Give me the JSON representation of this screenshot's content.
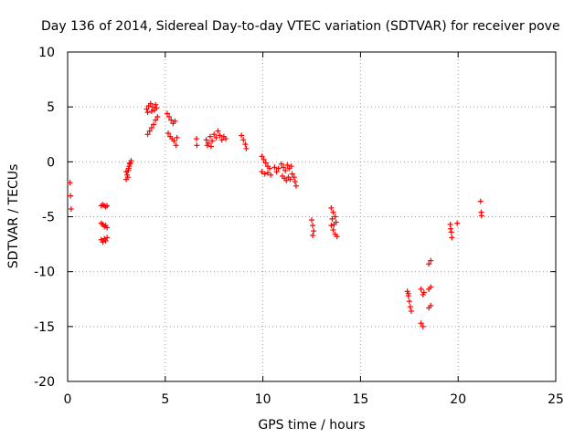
{
  "chart_data": {
    "type": "scatter",
    "title": "Day 136 of 2014, Sidereal Day-to-day VTEC variation (SDTVAR) for receiver pove",
    "xlabel": "GPS time / hours",
    "ylabel": "SDTVAR / TECUs",
    "xlim": [
      0,
      25
    ],
    "ylim": [
      -20,
      10
    ],
    "xticks": [
      0,
      5,
      10,
      15,
      20,
      25
    ],
    "yticks": [
      -20,
      -15,
      -10,
      -5,
      0,
      5,
      10
    ],
    "xtick_labels": [
      "0",
      "5",
      "10",
      "15",
      "20",
      "25"
    ],
    "ytick_labels": [
      "-20",
      "-15",
      "-10",
      "-5",
      "0",
      "5",
      "10"
    ],
    "grid": true,
    "marker": "+",
    "color": "#ff0000",
    "series": [
      {
        "name": "SDTVAR",
        "points": [
          [
            0.12,
            -1.9
          ],
          [
            0.15,
            -3.1
          ],
          [
            0.18,
            -4.3
          ],
          [
            1.72,
            -4.0
          ],
          [
            1.8,
            -3.9
          ],
          [
            1.88,
            -4.0
          ],
          [
            1.95,
            -4.1
          ],
          [
            2.02,
            -4.0
          ],
          [
            1.72,
            -5.6
          ],
          [
            1.8,
            -5.7
          ],
          [
            1.88,
            -5.9
          ],
          [
            1.95,
            -5.8
          ],
          [
            2.02,
            -6.0
          ],
          [
            1.72,
            -7.1
          ],
          [
            1.8,
            -7.3
          ],
          [
            1.88,
            -7.0
          ],
          [
            1.95,
            -7.2
          ],
          [
            2.02,
            -6.9
          ],
          [
            3.0,
            -1.6
          ],
          [
            3.05,
            -1.2
          ],
          [
            3.1,
            -0.8
          ],
          [
            3.15,
            -0.4
          ],
          [
            3.2,
            -0.1
          ],
          [
            3.25,
            0.1
          ],
          [
            3.0,
            -0.9
          ],
          [
            3.08,
            -1.4
          ],
          [
            3.12,
            -0.6
          ],
          [
            3.18,
            -0.2
          ],
          [
            4.1,
            2.5
          ],
          [
            4.2,
            2.8
          ],
          [
            4.3,
            3.1
          ],
          [
            4.4,
            3.4
          ],
          [
            4.5,
            3.8
          ],
          [
            4.6,
            4.1
          ],
          [
            4.05,
            4.8
          ],
          [
            4.15,
            5.1
          ],
          [
            4.25,
            5.3
          ],
          [
            4.35,
            5.0
          ],
          [
            4.45,
            4.7
          ],
          [
            4.55,
            4.9
          ],
          [
            4.1,
            4.5
          ],
          [
            4.3,
            4.6
          ],
          [
            4.5,
            5.2
          ],
          [
            5.1,
            4.4
          ],
          [
            5.2,
            4.1
          ],
          [
            5.3,
            3.8
          ],
          [
            5.4,
            3.5
          ],
          [
            5.5,
            3.7
          ],
          [
            5.15,
            2.6
          ],
          [
            5.25,
            2.3
          ],
          [
            5.35,
            2.1
          ],
          [
            5.45,
            1.9
          ],
          [
            5.55,
            1.5
          ],
          [
            5.6,
            2.2
          ],
          [
            6.6,
            2.1
          ],
          [
            6.62,
            1.5
          ],
          [
            7.1,
            2.0
          ],
          [
            7.2,
            1.7
          ],
          [
            7.3,
            2.3
          ],
          [
            7.4,
            1.9
          ],
          [
            7.5,
            2.5
          ],
          [
            7.15,
            1.5
          ],
          [
            7.35,
            1.4
          ],
          [
            7.6,
            2.2
          ],
          [
            7.7,
            2.8
          ],
          [
            7.8,
            2.4
          ],
          [
            7.9,
            2.0
          ],
          [
            8.0,
            2.3
          ],
          [
            8.1,
            2.1
          ],
          [
            8.9,
            2.4
          ],
          [
            9.0,
            2.0
          ],
          [
            9.1,
            1.6
          ],
          [
            9.15,
            1.2
          ],
          [
            9.95,
            0.5
          ],
          [
            10.05,
            0.2
          ],
          [
            10.15,
            -0.1
          ],
          [
            10.25,
            -0.4
          ],
          [
            10.35,
            -0.6
          ],
          [
            9.95,
            -0.9
          ],
          [
            10.1,
            -1.1
          ],
          [
            10.25,
            -1.0
          ],
          [
            10.4,
            -1.2
          ],
          [
            10.6,
            -0.5
          ],
          [
            10.7,
            -0.9
          ],
          [
            10.8,
            -0.6
          ],
          [
            10.95,
            -0.2
          ],
          [
            11.05,
            -0.5
          ],
          [
            11.15,
            -0.8
          ],
          [
            11.25,
            -0.3
          ],
          [
            11.35,
            -0.6
          ],
          [
            11.45,
            -0.4
          ],
          [
            11.0,
            -1.3
          ],
          [
            11.1,
            -1.5
          ],
          [
            11.2,
            -1.7
          ],
          [
            11.3,
            -1.4
          ],
          [
            11.4,
            -1.6
          ],
          [
            11.5,
            -1.1
          ],
          [
            11.6,
            -1.4
          ],
          [
            11.65,
            -1.8
          ],
          [
            11.7,
            -2.2
          ],
          [
            12.5,
            -5.3
          ],
          [
            12.55,
            -5.8
          ],
          [
            12.6,
            -6.3
          ],
          [
            12.55,
            -6.7
          ],
          [
            13.5,
            -4.2
          ],
          [
            13.6,
            -4.6
          ],
          [
            13.7,
            -5.0
          ],
          [
            13.75,
            -5.5
          ],
          [
            13.5,
            -5.8
          ],
          [
            13.6,
            -6.2
          ],
          [
            13.7,
            -6.6
          ],
          [
            13.8,
            -6.8
          ],
          [
            13.55,
            -5.2
          ],
          [
            13.65,
            -5.7
          ],
          [
            17.4,
            -11.8
          ],
          [
            17.45,
            -12.2
          ],
          [
            17.5,
            -12.7
          ],
          [
            17.55,
            -13.2
          ],
          [
            17.6,
            -13.6
          ],
          [
            17.45,
            -12.0
          ],
          [
            18.1,
            -11.6
          ],
          [
            18.2,
            -12.1
          ],
          [
            18.25,
            -11.9
          ],
          [
            18.1,
            -14.7
          ],
          [
            18.2,
            -15.0
          ],
          [
            18.5,
            -9.3
          ],
          [
            18.6,
            -9.0
          ],
          [
            18.5,
            -11.6
          ],
          [
            18.6,
            -11.4
          ],
          [
            18.5,
            -13.3
          ],
          [
            18.6,
            -13.1
          ],
          [
            19.6,
            -5.7
          ],
          [
            19.62,
            -6.1
          ],
          [
            19.65,
            -6.4
          ],
          [
            19.68,
            -6.9
          ],
          [
            19.95,
            -5.6
          ],
          [
            21.15,
            -3.6
          ],
          [
            21.18,
            -4.6
          ],
          [
            21.2,
            -4.9
          ]
        ]
      }
    ]
  }
}
